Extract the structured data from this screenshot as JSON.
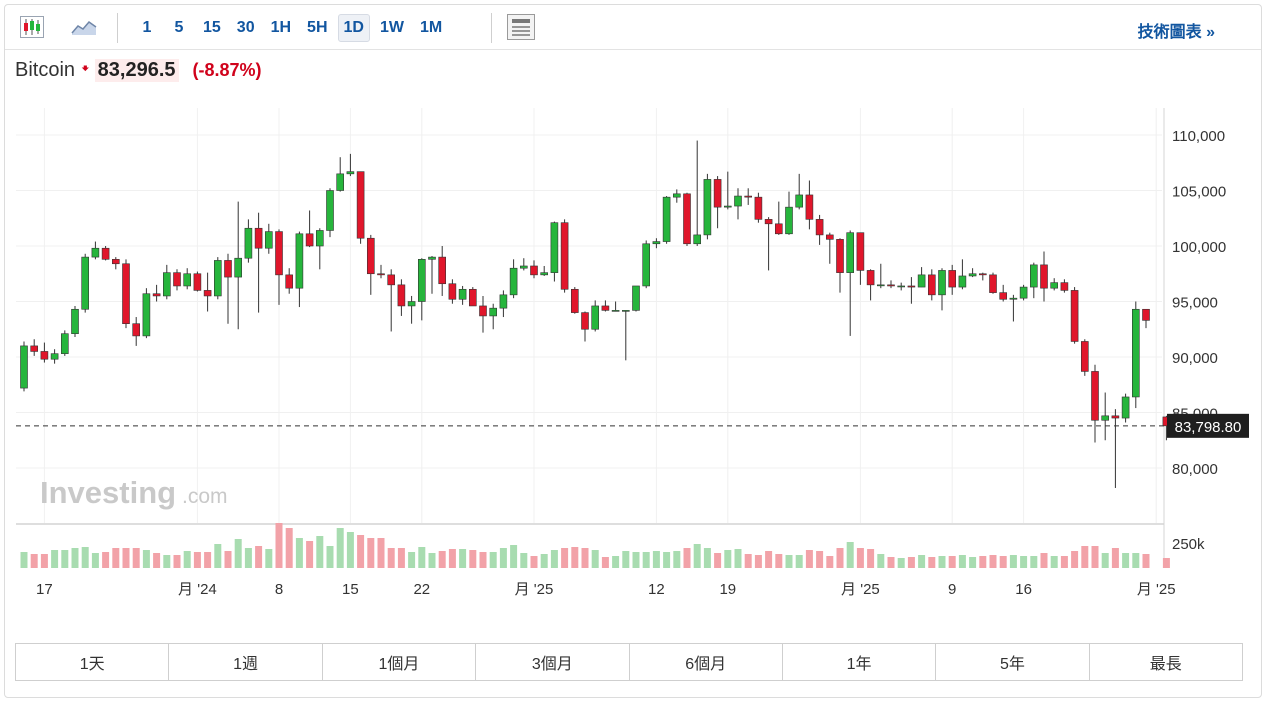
{
  "toolbar": {
    "icons": [
      "candlestick-icon",
      "area-chart-icon",
      "news-panel-icon"
    ],
    "intervals": [
      "1",
      "5",
      "15",
      "30",
      "1H",
      "5H",
      "1D",
      "1W",
      "1M"
    ],
    "active_interval": "1D",
    "tech_link": "技術圖表 »"
  },
  "header": {
    "asset": "Bitcoin",
    "price": "83,296.5",
    "change_pct": "(-8.87%)"
  },
  "periods": [
    "1天",
    "1週",
    "1個月",
    "3個月",
    "6個月",
    "1年",
    "5年",
    "最長"
  ],
  "colors": {
    "up": "#26b53c",
    "down": "#e0162b",
    "vol_up": "#a8dcb0",
    "vol_down": "#f2a2a8"
  },
  "watermark": {
    "brand": "Investing",
    "suffix": ".com"
  },
  "chart_data": {
    "type": "candlestick",
    "last_price_label": "83,798.80",
    "last_price": 83798.8,
    "yaxis_ticks": [
      {
        "value": 110000,
        "label": "110,000"
      },
      {
        "value": 105000,
        "label": "105,000"
      },
      {
        "value": 100000,
        "label": "100,000"
      },
      {
        "value": 95000,
        "label": "95,000"
      },
      {
        "value": 90000,
        "label": "90,000"
      },
      {
        "value": 85000,
        "label": "85,000"
      },
      {
        "value": 80000,
        "label": "80,000"
      }
    ],
    "volume_tick": "250k",
    "xaxis_ticks": [
      {
        "index": 2,
        "label": "17"
      },
      {
        "index": 17,
        "label": "月 '24"
      },
      {
        "index": 25,
        "label": "8"
      },
      {
        "index": 32,
        "label": "15"
      },
      {
        "index": 39,
        "label": "22"
      },
      {
        "index": 50,
        "label": "月 '25"
      },
      {
        "index": 62,
        "label": "12"
      },
      {
        "index": 69,
        "label": "19"
      },
      {
        "index": 82,
        "label": "月 '25"
      },
      {
        "index": 91,
        "label": "9"
      },
      {
        "index": 98,
        "label": "16"
      },
      {
        "index": 111,
        "label": "月 '25"
      }
    ],
    "candles": [
      [
        87200,
        91000,
        86900,
        91400,
        16
      ],
      [
        91000,
        90500,
        90100,
        91600,
        14
      ],
      [
        90500,
        89800,
        89500,
        91300,
        14
      ],
      [
        89800,
        90300,
        89400,
        90700,
        18
      ],
      [
        90300,
        92100,
        90100,
        92400,
        18
      ],
      [
        92100,
        94300,
        91800,
        94600,
        20
      ],
      [
        94300,
        99000,
        94000,
        99300,
        21
      ],
      [
        99000,
        99800,
        98800,
        100400,
        15
      ],
      [
        99800,
        98800,
        98700,
        100000,
        16
      ],
      [
        98800,
        98400,
        97900,
        99000,
        20
      ],
      [
        98400,
        93000,
        92600,
        98800,
        20
      ],
      [
        93000,
        91900,
        91000,
        93600,
        20
      ],
      [
        91900,
        95700,
        91700,
        96200,
        18
      ],
      [
        95700,
        95500,
        95000,
        96500,
        15
      ],
      [
        95500,
        97600,
        95200,
        98300,
        13
      ],
      [
        97600,
        96400,
        96000,
        97900,
        13
      ],
      [
        96400,
        97500,
        96100,
        98000,
        17
      ],
      [
        97500,
        96000,
        95900,
        97700,
        16
      ],
      [
        96000,
        95500,
        94100,
        97600,
        16
      ],
      [
        95500,
        98700,
        95200,
        99000,
        24
      ],
      [
        98700,
        97200,
        93000,
        99300,
        17
      ],
      [
        97200,
        98900,
        92500,
        104000,
        29
      ],
      [
        98900,
        101600,
        98500,
        102400,
        20
      ],
      [
        101600,
        99800,
        94000,
        103000,
        22
      ],
      [
        99800,
        101300,
        99300,
        102000,
        19
      ],
      [
        101300,
        97400,
        94700,
        101500,
        45
      ],
      [
        97400,
        96200,
        95700,
        98000,
        40
      ],
      [
        96200,
        101100,
        94500,
        101300,
        30
      ],
      [
        101100,
        100000,
        99900,
        103200,
        27
      ],
      [
        100000,
        101400,
        97900,
        101600,
        32
      ],
      [
        101400,
        105000,
        100800,
        105200,
        22
      ],
      [
        105000,
        106500,
        104900,
        108000,
        40
      ],
      [
        106500,
        106700,
        106300,
        108300,
        36
      ],
      [
        106700,
        100700,
        100200,
        106700,
        33
      ],
      [
        100700,
        97500,
        95600,
        101000,
        30
      ],
      [
        97500,
        97400,
        97100,
        98300,
        30
      ],
      [
        97400,
        96500,
        92300,
        97900,
        20
      ],
      [
        96500,
        94600,
        93700,
        97000,
        20
      ],
      [
        94600,
        95000,
        93000,
        95500,
        16
      ],
      [
        95000,
        98800,
        93300,
        98900,
        21
      ],
      [
        98800,
        99000,
        95700,
        99100,
        15
      ],
      [
        99000,
        96600,
        95500,
        100000,
        17
      ],
      [
        96600,
        95200,
        94800,
        97000,
        19
      ],
      [
        95200,
        96100,
        94700,
        96400,
        19
      ],
      [
        96100,
        94600,
        94600,
        96300,
        18
      ],
      [
        94600,
        93700,
        92200,
        95500,
        16
      ],
      [
        93700,
        94400,
        92500,
        94800,
        16
      ],
      [
        94400,
        95600,
        93600,
        96000,
        20
      ],
      [
        95600,
        98000,
        95300,
        98800,
        23
      ],
      [
        98000,
        98200,
        97800,
        98900,
        15
      ],
      [
        98200,
        97400,
        97100,
        98700,
        12
      ],
      [
        97400,
        97600,
        97300,
        98200,
        14
      ],
      [
        97600,
        102100,
        96800,
        102200,
        18
      ],
      [
        102100,
        96100,
        95800,
        102400,
        20
      ],
      [
        96100,
        94000,
        93900,
        96300,
        21
      ],
      [
        94000,
        92500,
        91400,
        94100,
        20
      ],
      [
        92500,
        94600,
        92300,
        95100,
        18
      ],
      [
        94600,
        94200,
        94100,
        95100,
        11
      ],
      [
        94200,
        94200,
        94100,
        95000,
        12
      ],
      [
        94200,
        94200,
        89700,
        94200,
        17
      ],
      [
        94200,
        96400,
        94100,
        96400,
        16
      ],
      [
        96400,
        100200,
        96200,
        100500,
        16
      ],
      [
        100200,
        100400,
        99800,
        100700,
        17
      ],
      [
        100400,
        104400,
        100200,
        104500,
        16
      ],
      [
        104400,
        104700,
        103900,
        105100,
        17
      ],
      [
        104700,
        100200,
        100000,
        104800,
        20
      ],
      [
        100200,
        101000,
        100000,
        109500,
        24
      ],
      [
        101000,
        106000,
        100600,
        106500,
        20
      ],
      [
        106000,
        103500,
        101600,
        106300,
        15
      ],
      [
        103500,
        103600,
        103300,
        106700,
        18
      ],
      [
        103600,
        104500,
        102400,
        105200,
        19
      ],
      [
        104500,
        104400,
        103700,
        105200,
        14
      ],
      [
        104400,
        102400,
        102100,
        104800,
        13
      ],
      [
        102400,
        102000,
        97800,
        102600,
        17
      ],
      [
        102000,
        101100,
        101000,
        104000,
        14
      ],
      [
        101100,
        103500,
        101000,
        104900,
        13
      ],
      [
        103500,
        104600,
        103300,
        106500,
        13
      ],
      [
        104600,
        102400,
        101500,
        105900,
        18
      ],
      [
        102400,
        101000,
        100100,
        102800,
        17
      ],
      [
        101000,
        100600,
        98400,
        101200,
        12
      ],
      [
        100600,
        97600,
        95800,
        100700,
        20
      ],
      [
        97600,
        101200,
        91900,
        101400,
        26
      ],
      [
        101200,
        97800,
        96500,
        101200,
        20
      ],
      [
        97800,
        96500,
        95100,
        97900,
        19
      ],
      [
        96500,
        96500,
        96200,
        98400,
        14
      ],
      [
        96500,
        96400,
        96200,
        96900,
        11
      ],
      [
        96400,
        96400,
        96000,
        96700,
        10
      ],
      [
        96400,
        96300,
        94800,
        97200,
        11
      ],
      [
        96300,
        97400,
        96300,
        98100,
        13
      ],
      [
        97400,
        95600,
        95100,
        97900,
        11
      ],
      [
        95600,
        97800,
        94200,
        98000,
        12
      ],
      [
        97800,
        96300,
        95600,
        98300,
        12
      ],
      [
        96300,
        97300,
        96100,
        98800,
        13
      ],
      [
        97300,
        97500,
        97200,
        98000,
        11
      ],
      [
        97500,
        97400,
        96900,
        97600,
        12
      ],
      [
        97400,
        95800,
        95700,
        97600,
        13
      ],
      [
        95800,
        95200,
        95000,
        96500,
        12
      ],
      [
        95200,
        95300,
        93200,
        95600,
        13
      ],
      [
        95300,
        96300,
        95100,
        96500,
        12
      ],
      [
        96300,
        98300,
        95300,
        98500,
        12
      ],
      [
        98300,
        96200,
        95000,
        99500,
        15
      ],
      [
        96200,
        96700,
        96000,
        97100,
        12
      ],
      [
        96700,
        96000,
        95800,
        97000,
        12
      ],
      [
        96000,
        91400,
        91200,
        96300,
        17
      ],
      [
        91400,
        88700,
        88300,
        91600,
        22
      ],
      [
        88700,
        84300,
        82300,
        89300,
        22
      ],
      [
        84300,
        84700,
        82500,
        86800,
        15
      ],
      [
        84700,
        84500,
        78200,
        85300,
        20
      ],
      [
        84500,
        86400,
        84100,
        86700,
        15
      ],
      [
        86400,
        94300,
        85400,
        95000,
        15
      ],
      [
        94300,
        93300,
        92600,
        94300,
        14
      ],
      [
        null,
        null,
        null,
        null,
        0
      ],
      [
        84600,
        83800,
        82500,
        84700,
        10
      ]
    ]
  }
}
